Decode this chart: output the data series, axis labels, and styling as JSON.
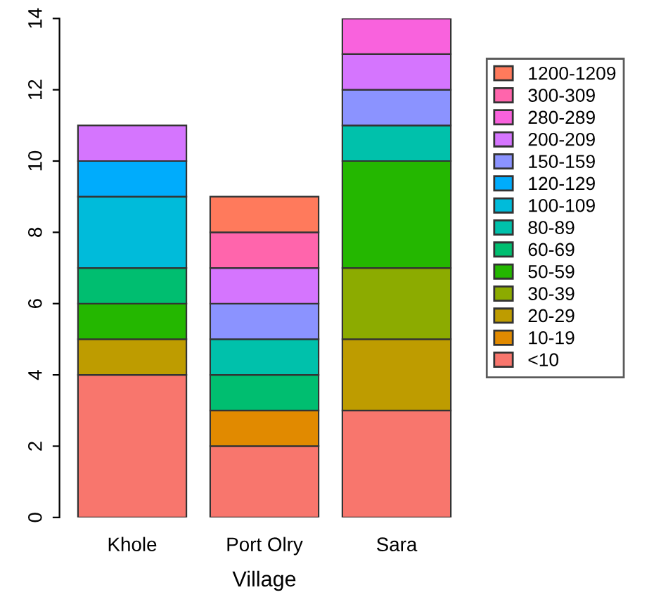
{
  "chart_data": {
    "type": "bar",
    "stacked": true,
    "xlabel": "Village",
    "categories": [
      "Khole",
      "Port Olry",
      "Sara"
    ],
    "ylim": [
      0,
      14
    ],
    "yticks": [
      0,
      2,
      4,
      6,
      8,
      10,
      12,
      14
    ],
    "grid": false,
    "legend": "right",
    "series": [
      {
        "name": "<10",
        "color": "#f8766d",
        "values": [
          4,
          2,
          3
        ]
      },
      {
        "name": "10-19",
        "color": "#e18a00",
        "values": [
          null,
          1,
          null
        ]
      },
      {
        "name": "20-29",
        "color": "#be9c00",
        "values": [
          1,
          null,
          2
        ]
      },
      {
        "name": "30-39",
        "color": "#8cab00",
        "values": [
          null,
          null,
          2
        ]
      },
      {
        "name": "50-59",
        "color": "#24b700",
        "values": [
          1,
          null,
          3
        ]
      },
      {
        "name": "60-69",
        "color": "#00be70",
        "values": [
          1,
          1,
          null
        ]
      },
      {
        "name": "80-89",
        "color": "#00c1ab",
        "values": [
          null,
          1,
          1
        ]
      },
      {
        "name": "100-109",
        "color": "#00bbda",
        "values": [
          2,
          null,
          null
        ]
      },
      {
        "name": "120-129",
        "color": "#00acfc",
        "values": [
          1,
          null,
          null
        ]
      },
      {
        "name": "150-159",
        "color": "#8b93ff",
        "values": [
          null,
          1,
          1
        ]
      },
      {
        "name": "200-209",
        "color": "#d575fe",
        "values": [
          1,
          1,
          1
        ]
      },
      {
        "name": "280-289",
        "color": "#f962dd",
        "values": [
          null,
          null,
          1
        ]
      },
      {
        "name": "300-309",
        "color": "#ff65ac",
        "values": [
          null,
          1,
          null
        ]
      },
      {
        "name": "1200-1209",
        "color": "#ff7a5c",
        "values": [
          null,
          1,
          null
        ]
      }
    ]
  }
}
